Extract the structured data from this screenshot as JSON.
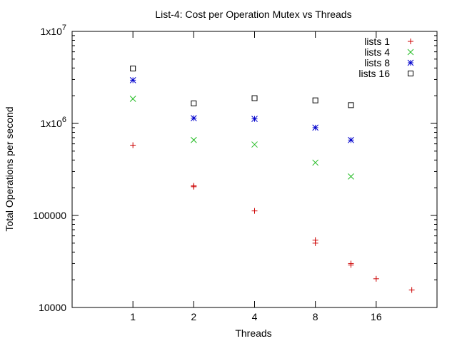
{
  "chart_data": {
    "type": "scatter",
    "title": "List-4: Cost per Operation Mutex vs Threads",
    "xlabel": "Threads",
    "ylabel": "Total Operations per second",
    "x_scale": "log2",
    "y_scale": "log10",
    "xlim": [
      0.5,
      32
    ],
    "ylim": [
      10000,
      10000000
    ],
    "x_ticks": [
      1,
      2,
      4,
      8,
      16
    ],
    "x_tick_labels": [
      "1",
      "2",
      "4",
      "8",
      "16"
    ],
    "y_ticks": [
      10000,
      100000,
      1000000,
      10000000
    ],
    "y_tick_labels": [
      {
        "base": "10000",
        "exp": ""
      },
      {
        "base": "100000",
        "exp": ""
      },
      {
        "base": "1x10",
        "exp": "6"
      },
      {
        "base": "1x10",
        "exp": "7"
      }
    ],
    "grid": false,
    "legend_position": "top-right",
    "series": [
      {
        "name": "lists 1",
        "marker": "plus",
        "color": "#cc0000",
        "points": [
          {
            "x": 1,
            "y": 580000
          },
          {
            "x": 2,
            "y": 210000
          },
          {
            "x": 2,
            "y": 205000
          },
          {
            "x": 4,
            "y": 112000
          },
          {
            "x": 8,
            "y": 54000
          },
          {
            "x": 8,
            "y": 50000
          },
          {
            "x": 12,
            "y": 30000
          },
          {
            "x": 12,
            "y": 29000
          },
          {
            "x": 16,
            "y": 20500
          },
          {
            "x": 24,
            "y": 15500
          }
        ]
      },
      {
        "name": "lists 4",
        "marker": "cross",
        "color": "#22bb22",
        "points": [
          {
            "x": 1,
            "y": 1850000
          },
          {
            "x": 2,
            "y": 660000
          },
          {
            "x": 4,
            "y": 590000
          },
          {
            "x": 8,
            "y": 375000
          },
          {
            "x": 12,
            "y": 265000
          }
        ]
      },
      {
        "name": "lists 8",
        "marker": "star",
        "color": "#0000cc",
        "points": [
          {
            "x": 1,
            "y": 2950000
          },
          {
            "x": 2,
            "y": 1140000
          },
          {
            "x": 4,
            "y": 1120000
          },
          {
            "x": 8,
            "y": 900000
          },
          {
            "x": 12,
            "y": 660000
          }
        ]
      },
      {
        "name": "lists 16",
        "marker": "square",
        "color": "#000000",
        "points": [
          {
            "x": 1,
            "y": 3950000
          },
          {
            "x": 2,
            "y": 1650000
          },
          {
            "x": 4,
            "y": 1880000
          },
          {
            "x": 8,
            "y": 1780000
          },
          {
            "x": 12,
            "y": 1580000
          }
        ]
      }
    ]
  }
}
